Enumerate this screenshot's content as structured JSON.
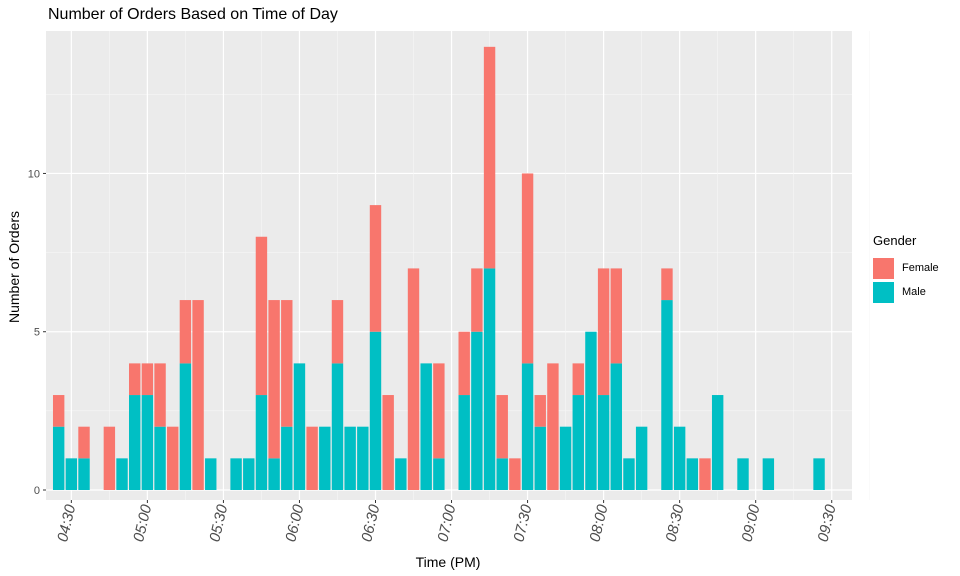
{
  "chart_data": {
    "type": "bar",
    "stacked": true,
    "title": "Number of Orders Based on Time of Day",
    "xlabel": "Time (PM)",
    "ylabel": "Number of Orders",
    "ylim": [
      0,
      14.5
    ],
    "yticks": [
      0,
      5,
      10
    ],
    "xticks": [
      {
        "label": "04:30",
        "min": 270
      },
      {
        "label": "05:00",
        "min": 300
      },
      {
        "label": "05:30",
        "min": 330
      },
      {
        "label": "06:00",
        "min": 360
      },
      {
        "label": "06:30",
        "min": 390
      },
      {
        "label": "07:00",
        "min": 420
      },
      {
        "label": "07:30",
        "min": 450
      },
      {
        "label": "08:00",
        "min": 480
      },
      {
        "label": "08:30",
        "min": 510
      },
      {
        "label": "09:00",
        "min": 540
      },
      {
        "label": "09:30",
        "min": 570
      }
    ],
    "x_minutes": [
      265,
      270,
      275,
      285,
      290,
      295,
      300,
      305,
      310,
      315,
      320,
      325,
      335,
      340,
      345,
      350,
      355,
      360,
      365,
      370,
      375,
      380,
      385,
      390,
      395,
      400,
      405,
      410,
      415,
      425,
      430,
      435,
      440,
      445,
      450,
      455,
      460,
      465,
      470,
      475,
      480,
      485,
      490,
      495,
      505,
      510,
      515,
      520,
      525,
      535,
      545,
      550,
      555,
      565
    ],
    "legend": {
      "title": "Gender",
      "position": "right"
    },
    "series": [
      {
        "name": "Male",
        "color": "#00BFC4",
        "values": [
          2,
          1,
          1,
          0,
          1,
          3,
          3,
          2,
          0,
          4,
          0,
          1,
          1,
          1,
          3,
          1,
          2,
          4,
          0,
          2,
          4,
          2,
          2,
          5,
          0,
          1,
          0,
          4,
          1,
          3,
          5,
          7,
          1,
          0,
          4,
          2,
          0,
          2,
          3,
          5,
          3,
          4,
          1,
          2,
          6,
          2,
          1,
          0,
          3,
          1,
          1,
          0,
          0,
          1
        ]
      },
      {
        "name": "Female",
        "color": "#F8766D",
        "values": [
          1,
          0,
          1,
          2,
          0,
          1,
          1,
          2,
          2,
          2,
          6,
          0,
          0,
          0,
          5,
          5,
          4,
          0,
          2,
          0,
          2,
          0,
          0,
          4,
          3,
          0,
          7,
          0,
          3,
          2,
          2,
          7,
          2,
          1,
          6,
          1,
          4,
          0,
          1,
          0,
          4,
          3,
          0,
          0,
          1,
          0,
          0,
          1,
          0,
          0,
          0,
          0,
          0,
          0
        ]
      }
    ],
    "grid": true
  }
}
